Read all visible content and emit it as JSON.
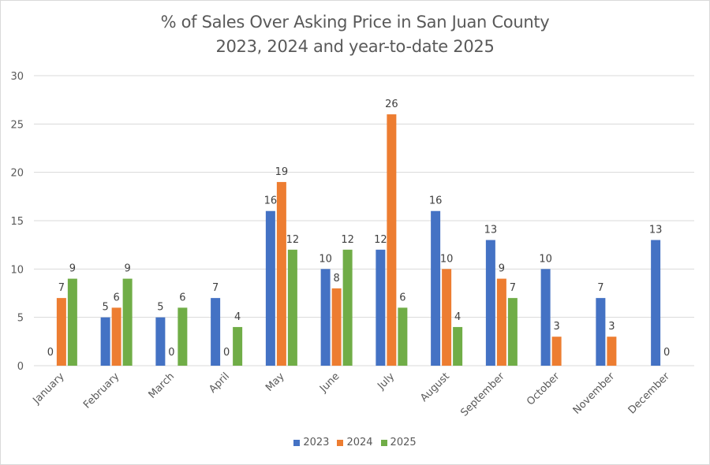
{
  "chart_data": {
    "type": "bar",
    "title": "% of Sales Over Asking Price in San Juan County",
    "subtitle": "2023, 2024 and year-to-date 2025",
    "xlabel": "",
    "ylabel": "",
    "ylim": [
      0,
      30
    ],
    "yticks": [
      0,
      5,
      10,
      15,
      20,
      25,
      30
    ],
    "grid": true,
    "legend_position": "bottom",
    "categories": [
      "January",
      "February",
      "March",
      "April",
      "May",
      "June",
      "July",
      "August",
      "September",
      "October",
      "November",
      "December"
    ],
    "series": [
      {
        "name": "2023",
        "color": "#4472C4",
        "values": [
          0,
          5,
          5,
          7,
          16,
          10,
          12,
          16,
          13,
          10,
          7,
          13
        ],
        "labels": [
          "0",
          "5",
          "5",
          "7",
          "16",
          "10",
          "12",
          "16",
          "13",
          "10",
          "7",
          "13"
        ]
      },
      {
        "name": "2024",
        "color": "#ED7D31",
        "values": [
          7,
          6,
          0,
          0,
          19,
          8,
          26,
          10,
          9,
          3,
          3,
          0
        ],
        "labels": [
          "7",
          "6",
          "0",
          "0",
          "19",
          "8",
          "26",
          "10",
          "9",
          "3",
          "3",
          "0"
        ]
      },
      {
        "name": "2025",
        "color": "#70AD47",
        "values": [
          9,
          9,
          6,
          4,
          12,
          12,
          6,
          4,
          7,
          null,
          null,
          null
        ],
        "labels": [
          "9",
          "9",
          "6",
          "4",
          "12",
          "12",
          "6",
          "4",
          "7",
          null,
          null,
          null
        ]
      }
    ]
  }
}
